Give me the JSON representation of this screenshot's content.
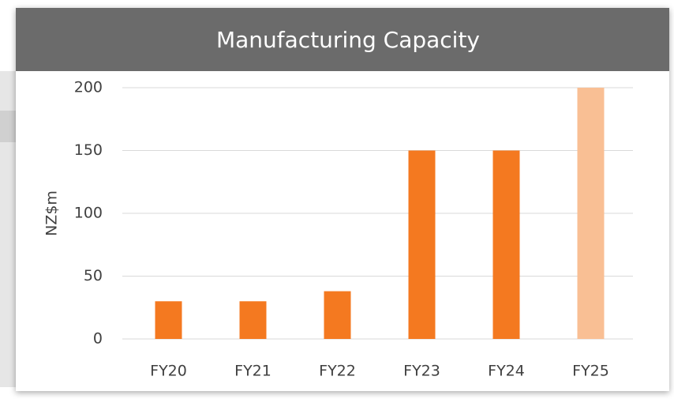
{
  "chart_data": {
    "type": "bar",
    "title": "Manufacturing Capacity",
    "y_label": "NZ$m",
    "categories": [
      "FY20",
      "FY21",
      "FY22",
      "FY23",
      "FY24",
      "FY25"
    ],
    "values": [
      30,
      30,
      38,
      150,
      150,
      200
    ],
    "colors": [
      "#f47920",
      "#f47920",
      "#f47920",
      "#f47920",
      "#f47920",
      "#f9bf94"
    ],
    "ylim": [
      0,
      200
    ],
    "yticks": [
      0,
      50,
      100,
      150,
      200
    ],
    "grid": true
  }
}
